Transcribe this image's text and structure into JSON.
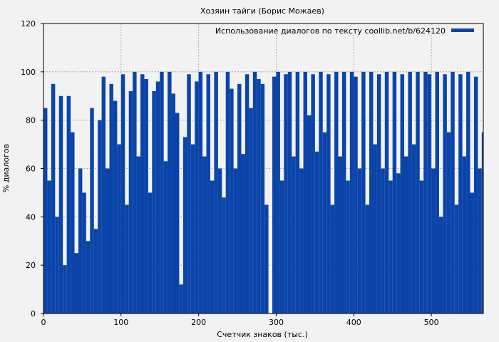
{
  "chart_data": {
    "type": "bar",
    "title": "Хозяин тайги (Борис Можаев)",
    "xlabel": "Счетчик знаков (тыс.)",
    "ylabel": "% диалогов",
    "xlim": [
      0,
      567
    ],
    "ylim": [
      0,
      120
    ],
    "x_ticks": [
      0,
      100,
      200,
      300,
      400,
      500
    ],
    "y_ticks": [
      0,
      20,
      40,
      60,
      80,
      100,
      120
    ],
    "grid": true,
    "legend_position": "top-right",
    "series": [
      {
        "name": "Использование диалогов по тексту coollib.net/b/624120",
        "color": "#0b44a9",
        "x": [
          0,
          5,
          10,
          15,
          20,
          25,
          30,
          35,
          40,
          45,
          50,
          55,
          60,
          65,
          70,
          75,
          80,
          85,
          90,
          95,
          100,
          105,
          110,
          115,
          120,
          125,
          130,
          135,
          140,
          145,
          150,
          155,
          160,
          165,
          170,
          175,
          180,
          185,
          190,
          195,
          200,
          205,
          210,
          215,
          220,
          225,
          230,
          235,
          240,
          245,
          250,
          255,
          260,
          265,
          270,
          275,
          280,
          285,
          290,
          295,
          300,
          305,
          310,
          315,
          320,
          325,
          330,
          335,
          340,
          345,
          350,
          355,
          360,
          365,
          370,
          375,
          380,
          385,
          390,
          395,
          400,
          405,
          410,
          415,
          420,
          425,
          430,
          435,
          440,
          445,
          450,
          455,
          460,
          465,
          470,
          475,
          480,
          485,
          490,
          495,
          500,
          505,
          510,
          515,
          520,
          525,
          530,
          535,
          540,
          545,
          550,
          555,
          560,
          565
        ],
        "values": [
          85,
          55,
          95,
          40,
          90,
          20,
          90,
          75,
          25,
          60,
          50,
          30,
          85,
          35,
          80,
          98,
          60,
          95,
          88,
          70,
          99,
          45,
          92,
          100,
          65,
          99,
          97,
          50,
          92,
          96,
          100,
          63,
          100,
          91,
          83,
          12,
          73,
          99,
          70,
          96,
          100,
          65,
          99,
          55,
          100,
          60,
          48,
          100,
          93,
          60,
          95,
          66,
          99,
          85,
          100,
          97,
          95,
          45,
          0,
          98,
          100,
          55,
          99,
          100,
          65,
          100,
          60,
          100,
          82,
          99,
          67,
          100,
          75,
          99,
          45,
          100,
          65,
          100,
          55,
          100,
          98,
          60,
          100,
          45,
          100,
          70,
          99,
          60,
          100,
          55,
          100,
          58,
          99,
          65,
          100,
          70,
          100,
          55,
          100,
          99,
          60,
          100,
          40,
          99,
          75,
          100,
          45,
          99,
          65,
          100,
          50,
          98,
          60,
          75
        ]
      }
    ]
  }
}
